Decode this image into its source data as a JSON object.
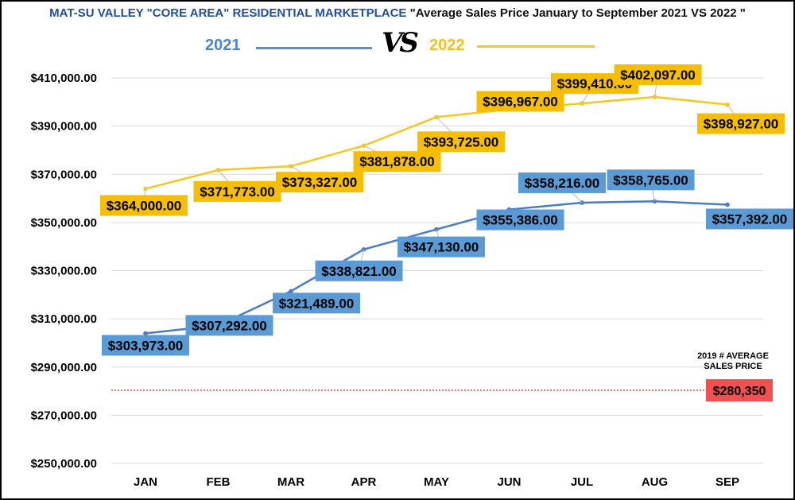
{
  "header": {
    "title_part1": "MAT-SU VALLEY \"CORE AREA\" RESIDENTIAL MARKETPLACE ",
    "title_part2": "\"Average Sales Price January to September 2021 VS 2022 \"",
    "legend_2021": "2021",
    "legend_2022": "2022",
    "vs_text": "VS"
  },
  "chart_data": {
    "type": "line",
    "categories": [
      "JAN",
      "FEB",
      "MAR",
      "APR",
      "MAY",
      "JUN",
      "JUL",
      "AUG",
      "SEP"
    ],
    "ylim": [
      250000,
      410000
    ],
    "yticks": [
      250000,
      270000,
      290000,
      310000,
      330000,
      350000,
      370000,
      390000,
      410000
    ],
    "ytick_labels": [
      "$250,000.00",
      "$270,000.00",
      "$290,000.00",
      "$310,000.00",
      "$330,000.00",
      "$350,000.00",
      "$370,000.00",
      "$390,000.00",
      "$410,000.00"
    ],
    "grid": true,
    "series": [
      {
        "name": "2021",
        "color": "#4a7cc4",
        "label_bg": "#5b9bd5",
        "values": [
          303973,
          307292,
          321489,
          338821,
          347130,
          355386,
          358216,
          358765,
          357392
        ],
        "labels": [
          "$303,973.00",
          "$307,292.00",
          "$321,489.00",
          "$338,821.00",
          "$347,130.00",
          "$355,386.00",
          "$358,216.00",
          "$358,765.00",
          "$357,392.00"
        ]
      },
      {
        "name": "2022",
        "color": "#f4c81e",
        "label_bg": "#f7be00",
        "values": [
          364000,
          371773,
          373327,
          381878,
          393725,
          396967,
          399410,
          402097,
          398927
        ],
        "labels": [
          "$364,000.00",
          "$371,773.00",
          "$373,327.00",
          "$381,878.00",
          "$393,725.00",
          "$396,967.00",
          "$399,410.00",
          "$402,097.00",
          "$398,927.00"
        ]
      }
    ],
    "reference": {
      "value": 280350,
      "label": "$280,350",
      "note_line1": "2019 # AVERAGE",
      "note_line2": "SALES PRICE",
      "color": "#e02020",
      "label_bg": "#f05050"
    }
  }
}
